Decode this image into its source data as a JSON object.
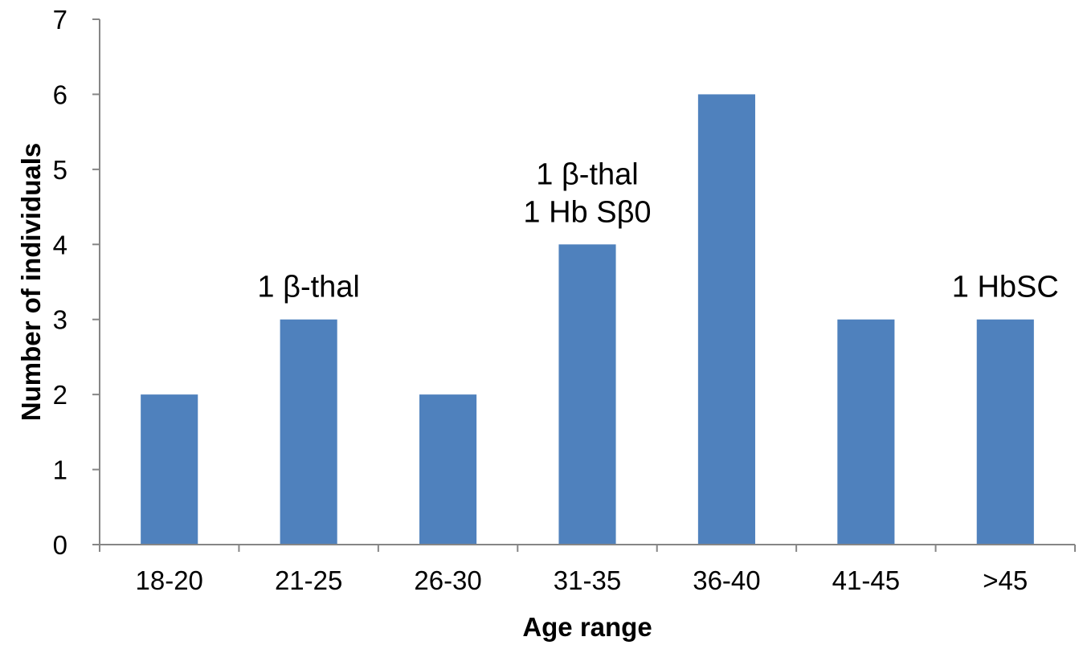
{
  "chart_data": {
    "type": "bar",
    "title": "",
    "xlabel": "Age range",
    "ylabel": "Number of individuals",
    "categories": [
      "18-20",
      "21-25",
      "26-30",
      "31-35",
      "36-40",
      "41-45",
      ">45"
    ],
    "values": [
      2,
      3,
      2,
      4,
      6,
      3,
      3
    ],
    "ylim": [
      0,
      7
    ],
    "yticks": [
      "0",
      "1",
      "2",
      "3",
      "4",
      "5",
      "6",
      "7"
    ],
    "grid": false,
    "legend": "none",
    "bar_color": "#4F81BD",
    "annotations": [
      {
        "category_index": 1,
        "lines": [
          "1 β-thal"
        ]
      },
      {
        "category_index": 3,
        "lines": [
          "1 β-thal",
          "1 Hb Sβ0"
        ]
      },
      {
        "category_index": 6,
        "lines": [
          "1 HbSC"
        ]
      }
    ]
  }
}
